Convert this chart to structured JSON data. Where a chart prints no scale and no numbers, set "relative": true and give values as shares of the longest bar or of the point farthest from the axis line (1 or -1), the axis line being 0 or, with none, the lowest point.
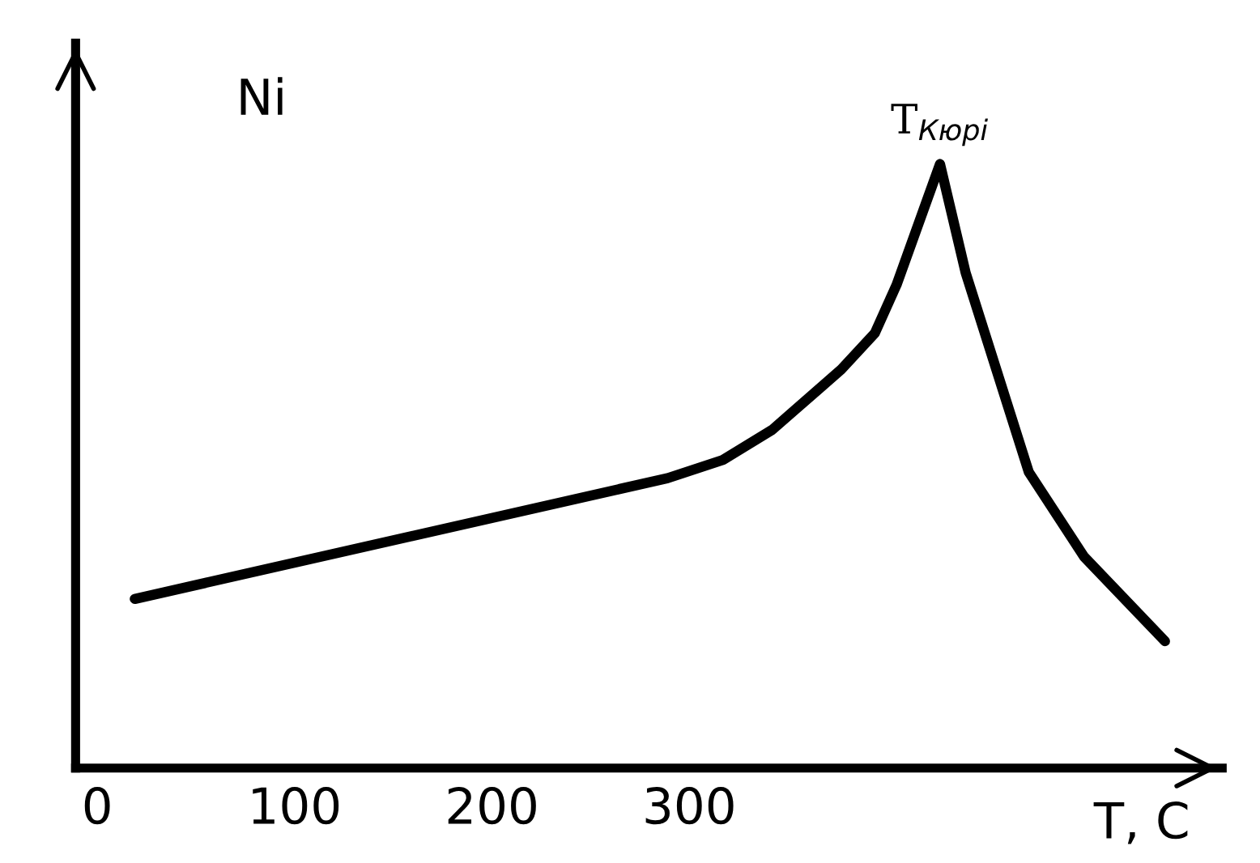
{
  "chart_data": {
    "type": "line",
    "title": "Ni",
    "xlabel": "T, C",
    "relative": true,
    "x": [
      19,
      289,
      317,
      342,
      377,
      394,
      405,
      427,
      440,
      472,
      500,
      541
    ],
    "series": [
      {
        "color": "#000000",
        "values": [
          0.28,
          0.48,
          0.51,
          0.56,
          0.66,
          0.72,
          0.8,
          1.0,
          0.82,
          0.49,
          0.35,
          0.21
        ]
      }
    ],
    "xlim": [
      -11,
      570
    ],
    "xticks": [
      0,
      100,
      200,
      300
    ],
    "grid": false,
    "legend": false,
    "marker": "none",
    "line_style": "solid",
    "annotations": [
      {
        "text": "T$_{Кюрі}$",
        "x": 427,
        "y": 1.0
      }
    ]
  }
}
